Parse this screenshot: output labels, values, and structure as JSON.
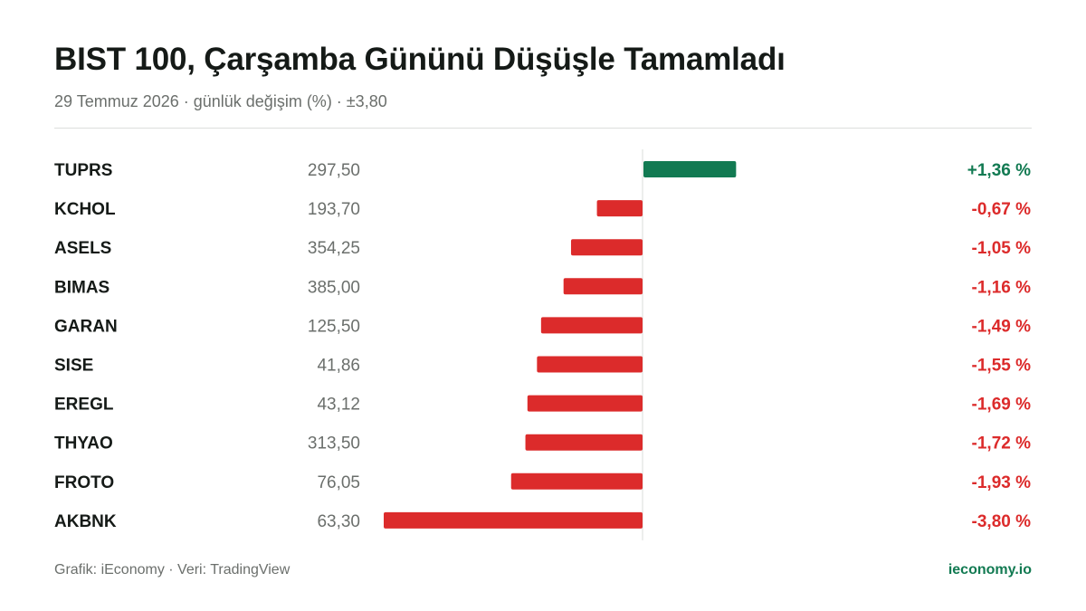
{
  "header": {
    "title": "BIST 100, Çarşamba Gününü Düşüşle Tamamladı",
    "subtitle": "29 Temmuz 2026 · günlük değişim (%) · ±3,80"
  },
  "footer": {
    "credit": "Grafik: iEconomy · Veri: TradingView",
    "site": "ieconomy.io"
  },
  "colors": {
    "positive": "#127a52",
    "negative": "#dc2b2b",
    "axis": "#d9dcd9"
  },
  "chart_data": {
    "type": "bar",
    "orientation": "horizontal",
    "xlim": [
      -3.8,
      3.8
    ],
    "categories": [
      "TUPRS",
      "KCHOL",
      "ASELS",
      "BIMAS",
      "GARAN",
      "SISE",
      "EREGL",
      "THYAO",
      "FROTO",
      "AKBNK"
    ],
    "prices": [
      "297,50",
      "193,70",
      "354,25",
      "385,00",
      "125,50",
      "41,86",
      "43,12",
      "313,50",
      "76,05",
      "63,30"
    ],
    "values": [
      1.36,
      -0.67,
      -1.05,
      -1.16,
      -1.49,
      -1.55,
      -1.69,
      -1.72,
      -1.93,
      -3.8
    ],
    "value_labels": [
      "+1,36 %",
      "-0,67 %",
      "-1,05 %",
      "-1,16 %",
      "-1,49 %",
      "-1,55 %",
      "-1,69 %",
      "-1,72 %",
      "-1,93 %",
      "-3,80 %"
    ]
  }
}
